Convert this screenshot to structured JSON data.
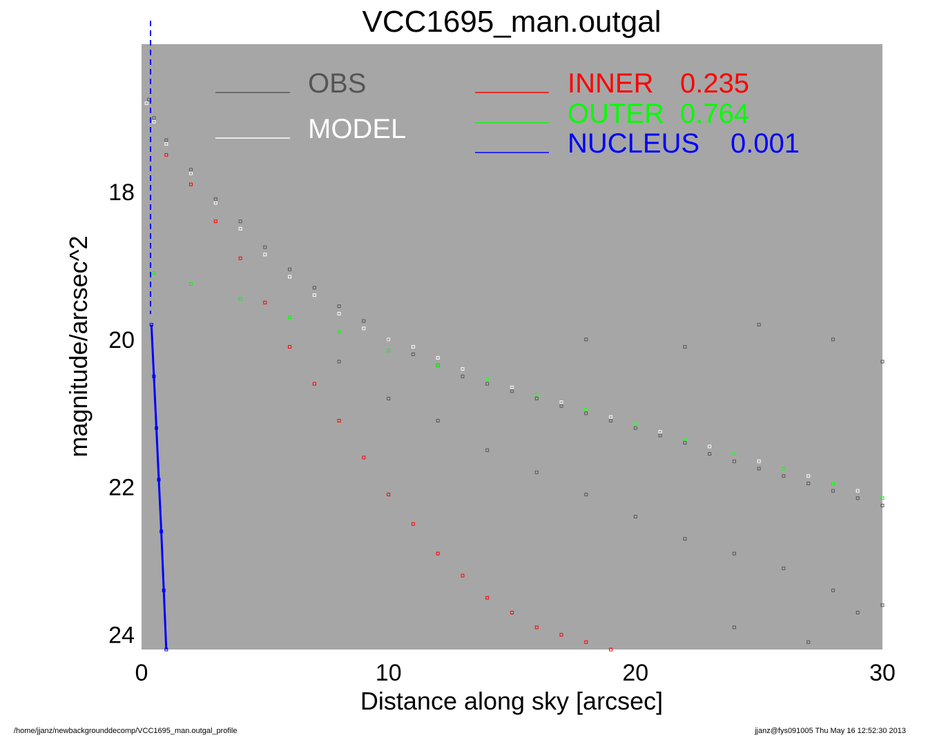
{
  "footer": {
    "left": "/home/jjanz/newbackgrounddecomp/VCC1695_man.outgal_profile",
    "right": "jjanz@fys091005  Thu May 16 12:52:30 2013"
  },
  "chart_data": {
    "type": "scatter",
    "title": "VCC1695_man.outgal",
    "xlabel": "Distance along sky [arcsec]",
    "ylabel": "magnitude/arcsec^2",
    "xlim": [
      0,
      30
    ],
    "ylim": [
      24.2,
      16.0
    ],
    "y_inverted": true,
    "background_color": "#a6a6a6",
    "x_ticks": [
      0,
      10,
      20,
      30
    ],
    "y_ticks": [
      18,
      20,
      22,
      24
    ],
    "legend": [
      {
        "label": "OBS",
        "value": "",
        "color": "#555555"
      },
      {
        "label": "MODEL",
        "value": "",
        "color": "#ffffff"
      },
      {
        "label": "INNER",
        "value": "0.235",
        "color": "#ff0000"
      },
      {
        "label": "OUTER",
        "value": "0.764",
        "color": "#00ff00"
      },
      {
        "label": "NUCLEUS",
        "value": "0.001",
        "color": "#0000ff"
      }
    ],
    "series": [
      {
        "name": "OBS",
        "color": "#555555",
        "points": [
          [
            0.3,
            16.75
          ],
          [
            0.5,
            17.0
          ],
          [
            1.0,
            17.3
          ],
          [
            2.0,
            17.7
          ],
          [
            3.0,
            18.1
          ],
          [
            4.0,
            18.4
          ],
          [
            5.0,
            18.75
          ],
          [
            6.0,
            19.05
          ],
          [
            7.0,
            19.3
          ],
          [
            8.0,
            19.55
          ],
          [
            9.0,
            19.75
          ],
          [
            10.0,
            20.0
          ],
          [
            11.0,
            20.2
          ],
          [
            12.0,
            20.35
          ],
          [
            13.0,
            20.5
          ],
          [
            14.0,
            20.6
          ],
          [
            15.0,
            20.7
          ],
          [
            16.0,
            20.8
          ],
          [
            17.0,
            20.9
          ],
          [
            18.0,
            21.0
          ],
          [
            19.0,
            21.1
          ],
          [
            20.0,
            21.2
          ],
          [
            21.0,
            21.3
          ],
          [
            22.0,
            21.4
          ],
          [
            23.0,
            21.55
          ],
          [
            24.0,
            21.65
          ],
          [
            25.0,
            21.75
          ],
          [
            26.0,
            21.85
          ],
          [
            27.0,
            21.95
          ],
          [
            28.0,
            22.05
          ],
          [
            29.0,
            22.15
          ],
          [
            30.0,
            22.25
          ],
          [
            8.0,
            20.3
          ],
          [
            10.0,
            20.8
          ],
          [
            12.0,
            21.1
          ],
          [
            14.0,
            21.5
          ],
          [
            16.0,
            21.8
          ],
          [
            18.0,
            22.1
          ],
          [
            20.0,
            22.4
          ],
          [
            22.0,
            22.7
          ],
          [
            24.0,
            22.9
          ],
          [
            26.0,
            23.1
          ],
          [
            28.0,
            23.4
          ],
          [
            30.0,
            23.6
          ],
          [
            18.0,
            20.0
          ],
          [
            22.0,
            20.1
          ],
          [
            25.0,
            19.8
          ],
          [
            28.0,
            20.0
          ],
          [
            30.0,
            20.3
          ],
          [
            24.0,
            23.9
          ],
          [
            27.0,
            24.1
          ],
          [
            29.0,
            23.7
          ]
        ]
      },
      {
        "name": "MODEL",
        "color": "#ffffff",
        "points": [
          [
            0.2,
            16.8
          ],
          [
            0.5,
            17.05
          ],
          [
            1.0,
            17.35
          ],
          [
            2.0,
            17.75
          ],
          [
            3.0,
            18.15
          ],
          [
            4.0,
            18.5
          ],
          [
            5.0,
            18.85
          ],
          [
            6.0,
            19.15
          ],
          [
            7.0,
            19.4
          ],
          [
            8.0,
            19.65
          ],
          [
            9.0,
            19.85
          ],
          [
            10.0,
            20.0
          ],
          [
            11.0,
            20.1
          ],
          [
            12.0,
            20.25
          ],
          [
            13.0,
            20.4
          ],
          [
            14.0,
            20.55
          ],
          [
            15.0,
            20.65
          ],
          [
            16.0,
            20.75
          ],
          [
            17.0,
            20.85
          ],
          [
            18.0,
            20.95
          ],
          [
            19.0,
            21.05
          ],
          [
            20.0,
            21.15
          ],
          [
            21.0,
            21.25
          ],
          [
            22.0,
            21.35
          ],
          [
            23.0,
            21.45
          ],
          [
            24.0,
            21.55
          ],
          [
            25.0,
            21.65
          ],
          [
            26.0,
            21.75
          ],
          [
            27.0,
            21.85
          ],
          [
            28.0,
            21.95
          ],
          [
            29.0,
            22.05
          ],
          [
            30.0,
            22.15
          ]
        ]
      },
      {
        "name": "INNER",
        "color": "#ff0000",
        "points": [
          [
            1.0,
            17.5
          ],
          [
            2.0,
            17.9
          ],
          [
            3.0,
            18.4
          ],
          [
            4.0,
            18.9
          ],
          [
            5.0,
            19.5
          ],
          [
            6.0,
            20.1
          ],
          [
            7.0,
            20.6
          ],
          [
            8.0,
            21.1
          ],
          [
            9.0,
            21.6
          ],
          [
            10.0,
            22.1
          ],
          [
            11.0,
            22.5
          ],
          [
            12.0,
            22.9
          ],
          [
            13.0,
            23.2
          ],
          [
            14.0,
            23.5
          ],
          [
            15.0,
            23.7
          ],
          [
            16.0,
            23.9
          ],
          [
            17.0,
            24.0
          ],
          [
            18.0,
            24.1
          ],
          [
            19.0,
            24.2
          ]
        ]
      },
      {
        "name": "OUTER",
        "color": "#00ff00",
        "points": [
          [
            0.5,
            19.1
          ],
          [
            2.0,
            19.25
          ],
          [
            4.0,
            19.45
          ],
          [
            6.0,
            19.7
          ],
          [
            8.0,
            19.9
          ],
          [
            10.0,
            20.15
          ],
          [
            12.0,
            20.35
          ],
          [
            14.0,
            20.55
          ],
          [
            16.0,
            20.75
          ],
          [
            18.0,
            20.95
          ],
          [
            20.0,
            21.15
          ],
          [
            22.0,
            21.35
          ],
          [
            24.0,
            21.55
          ],
          [
            26.0,
            21.75
          ],
          [
            28.0,
            21.95
          ],
          [
            30.0,
            22.15
          ]
        ]
      },
      {
        "name": "NUCLEUS",
        "color": "#0000ff",
        "points": [
          [
            0.4,
            19.8
          ],
          [
            0.5,
            20.5
          ],
          [
            0.6,
            21.2
          ],
          [
            0.7,
            21.9
          ],
          [
            0.8,
            22.6
          ],
          [
            0.9,
            23.4
          ],
          [
            1.0,
            24.2
          ]
        ]
      }
    ]
  }
}
